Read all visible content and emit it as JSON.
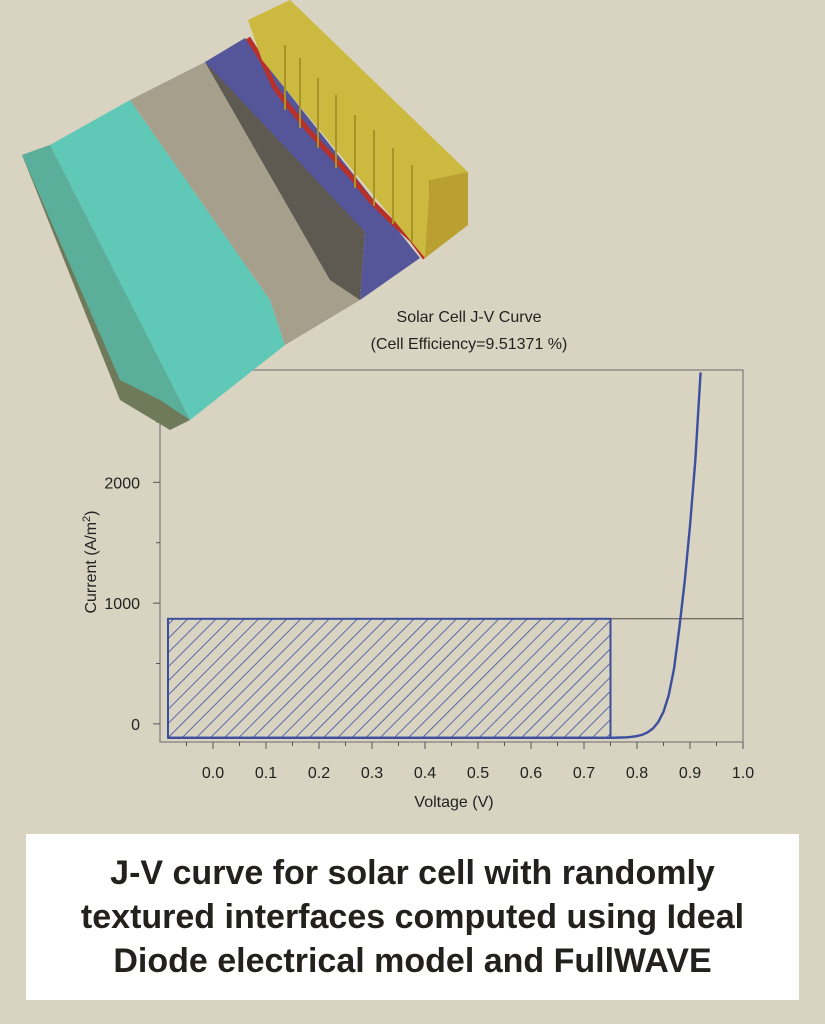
{
  "caption": {
    "line1": "J-V curve for solar cell with randomly",
    "line2": "textured interfaces computed using Ideal",
    "line3": "Diode electrical model and FullWAVE"
  },
  "chart_data": {
    "type": "line",
    "title": "Solar Cell J-V Curve",
    "subtitle": "(Cell Efficiency=9.51371 %)",
    "xlabel": "Voltage (V)",
    "ylabel_main": "Current (A/m",
    "ylabel_sup": "2",
    "ylabel_close": ")",
    "xlim": [
      -0.1,
      1.0
    ],
    "ylim": [
      -150,
      2930
    ],
    "xticks": [
      "0.0",
      "0.1",
      "0.2",
      "0.3",
      "0.4",
      "0.5",
      "0.6",
      "0.7",
      "0.8",
      "0.9",
      "1.0"
    ],
    "yticks": [
      "0",
      "1000",
      "2000"
    ],
    "grid": false,
    "series": [
      {
        "x": [
          -0.1,
          0.75,
          0.77,
          0.78,
          0.79,
          0.8,
          0.81,
          0.82,
          0.83,
          0.84,
          0.85,
          0.86,
          0.87,
          0.88,
          0.89,
          0.9,
          0.91,
          0.92
        ],
        "y": [
          -115,
          -115,
          -113,
          -111,
          -107,
          -101,
          -90,
          -70,
          -38,
          15,
          100,
          240,
          460,
          800,
          1180,
          1640,
          2180,
          2910
        ]
      }
    ],
    "reference_line_y": 870,
    "max_power_rectangle": {
      "x": [
        -0.1,
        0.75
      ],
      "y": [
        -115,
        870
      ]
    },
    "colors": {
      "curve": "#3b4f9e",
      "hatch": "#3b4f9e",
      "reference": "#4a4a4a"
    }
  },
  "illustration": {
    "subject": "3D cross-section of solar cell layers",
    "colors": {
      "base_dark": "#6f7a5a",
      "teal_top": "#5fc8b6",
      "teal_side": "#46a99a",
      "gray_top": "#a59f8c",
      "gray_side": "#5e5a52",
      "purple": "#55559a",
      "red_line": "#b8302a",
      "gold_top": "#cbb940",
      "gold_side": "#b9a030"
    }
  }
}
